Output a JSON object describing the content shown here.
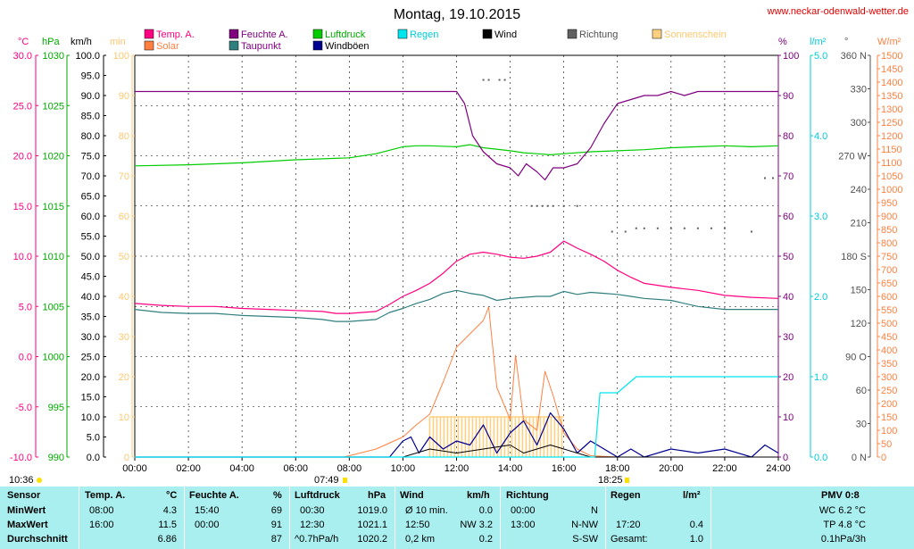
{
  "page": {
    "title": "Montag, 19.10.2015",
    "website": "www.neckar-odenwald-wetter.de"
  },
  "colors": {
    "temp": "#ff0080",
    "humidity": "#800080",
    "pressure": "#00cc00",
    "rain": "#00e5ee",
    "wind": "#000000",
    "direction": "#606060",
    "sunshine": "#ffd080",
    "solar": "#ff8040",
    "dewpoint": "#2f7f7f",
    "gust": "#000090",
    "grid": "#000000",
    "table_bg": "#a9efef"
  },
  "legend": {
    "temp": "Temp. A.",
    "humidity": "Feuchte A.",
    "pressure": "Luftdruck",
    "rain": "Regen",
    "wind": "Wind",
    "direction": "Richtung",
    "sunshine": "Sonnenschein",
    "solar": "Solar",
    "dewpoint": "Taupunkt",
    "gust": "Windböen"
  },
  "unit_labels": {
    "temp": "°C",
    "pressure": "hPa",
    "wind": "km/h",
    "sun": "min",
    "humidity": "%",
    "rain": "l/m²",
    "direction": "°",
    "solar": "W/m²"
  },
  "sun_times": {
    "left": "10:36",
    "sunrise": "07:49",
    "sunset": "18:25"
  },
  "chart_data": {
    "type": "line",
    "x_ticks": [
      "00:00",
      "02:00",
      "04:00",
      "06:00",
      "08:00",
      "10:00",
      "12:00",
      "14:00",
      "16:00",
      "18:00",
      "20:00",
      "22:00",
      "24:00"
    ],
    "axes": {
      "temp": {
        "min": -10,
        "max": 30,
        "ticks": [
          "30.0",
          "25.0",
          "20.0",
          "15.0",
          "10.0",
          "5.0",
          "0.0",
          "-5.0",
          "-10.0"
        ]
      },
      "pressure": {
        "min": 990,
        "max": 1030,
        "ticks": [
          "1030",
          "1025",
          "1020",
          "1015",
          "1010",
          "1005",
          "1000",
          "995",
          "990"
        ]
      },
      "wind": {
        "min": 0,
        "max": 100,
        "ticks": [
          "100.0",
          "95.0",
          "90.0",
          "85.0",
          "80.0",
          "75.0",
          "70.0",
          "65.0",
          "60.0",
          "55.0",
          "50.0",
          "45.0",
          "40.0",
          "35.0",
          "30.0",
          "25.0",
          "20.0",
          "15.0",
          "10.0",
          "5.0",
          "0.0"
        ]
      },
      "sun": {
        "min": 0,
        "max": 100,
        "ticks": [
          "100",
          "90",
          "80",
          "70",
          "60",
          "50",
          "40",
          "30",
          "20",
          "10",
          "0"
        ]
      },
      "humidity": {
        "min": 0,
        "max": 100,
        "ticks": [
          "100",
          "90",
          "80",
          "70",
          "60",
          "50",
          "40",
          "30",
          "20",
          "10",
          "0"
        ]
      },
      "rain": {
        "min": 0,
        "max": 5,
        "ticks": [
          "5.0",
          "4.0",
          "3.0",
          "2.0",
          "1.0",
          "0.0"
        ]
      },
      "direction": {
        "min": 0,
        "max": 360,
        "ticks": [
          "360 N",
          "330",
          "300",
          "270 W",
          "240",
          "210",
          "180 S",
          "150",
          "120",
          "90 O",
          "60",
          "30",
          "0 N"
        ]
      },
      "solar": {
        "min": 0,
        "max": 1500,
        "ticks": [
          "1500",
          "1450",
          "1400",
          "1350",
          "1300",
          "1250",
          "1200",
          "1150",
          "1100",
          "1050",
          "1000",
          "950",
          "900",
          "850",
          "800",
          "750",
          "700",
          "650",
          "600",
          "550",
          "500",
          "450",
          "400",
          "350",
          "300",
          "250",
          "200",
          "150",
          "100",
          "50",
          "0"
        ]
      }
    },
    "series": [
      {
        "name": "Temp. A.",
        "axis": "temp",
        "x": [
          0,
          1,
          2,
          3,
          4,
          5,
          6,
          7,
          7.5,
          8,
          8.5,
          9,
          9.5,
          10,
          10.5,
          11,
          11.5,
          12,
          12.5,
          13,
          13.5,
          14,
          14.5,
          15,
          15.5,
          16,
          16.5,
          17,
          17.5,
          18,
          18.5,
          19,
          20,
          21,
          22,
          23,
          24
        ],
        "values": [
          5.3,
          5.1,
          5.0,
          5.0,
          4.8,
          4.7,
          4.6,
          4.5,
          4.3,
          4.3,
          4.4,
          4.5,
          5.2,
          6.0,
          6.6,
          7.3,
          8.3,
          9.5,
          10.2,
          10.4,
          10.2,
          9.9,
          9.8,
          10.0,
          10.4,
          11.5,
          10.8,
          10.2,
          9.5,
          8.6,
          7.9,
          7.3,
          6.9,
          6.6,
          6.1,
          5.9,
          5.8
        ]
      },
      {
        "name": "Taupunkt",
        "axis": "temp",
        "x": [
          0,
          1,
          2,
          3,
          4,
          5,
          6,
          7,
          7.5,
          8,
          8.5,
          9,
          9.5,
          10,
          10.5,
          11,
          11.5,
          12,
          12.5,
          13,
          13.5,
          14,
          14.5,
          15,
          15.5,
          16,
          16.5,
          17,
          17.5,
          18,
          18.5,
          19,
          20,
          21,
          22,
          23,
          24
        ],
        "values": [
          4.7,
          4.4,
          4.3,
          4.3,
          4.1,
          4.0,
          3.9,
          3.7,
          3.5,
          3.5,
          3.6,
          3.7,
          4.4,
          4.8,
          5.3,
          5.7,
          6.3,
          6.6,
          6.3,
          6.1,
          5.6,
          5.8,
          5.9,
          6.0,
          6.0,
          6.5,
          6.2,
          6.4,
          6.3,
          6.2,
          6.0,
          5.8,
          5.6,
          5.0,
          4.7,
          4.7,
          4.7
        ]
      },
      {
        "name": "Luftdruck",
        "axis": "pressure",
        "x": [
          0,
          2,
          4,
          6,
          8,
          9,
          10,
          10.5,
          11,
          12,
          12.5,
          13,
          14,
          14.5,
          15,
          15.5,
          16,
          17,
          18,
          19,
          20,
          21,
          22,
          23,
          24
        ],
        "values": [
          1019.0,
          1019.1,
          1019.3,
          1019.6,
          1019.8,
          1020.2,
          1020.9,
          1021.0,
          1021.0,
          1020.9,
          1021.1,
          1020.8,
          1020.5,
          1020.3,
          1020.2,
          1020.1,
          1020.2,
          1020.4,
          1020.5,
          1020.6,
          1020.8,
          1020.9,
          1021.0,
          1020.9,
          1021.0
        ]
      },
      {
        "name": "Feuchte A.",
        "axis": "humidity",
        "x": [
          0,
          2,
          4,
          6,
          8,
          10,
          11,
          12,
          12.3,
          12.6,
          13,
          13.5,
          14,
          14.3,
          14.6,
          15,
          15.3,
          15.6,
          16,
          16.5,
          17,
          17.5,
          18,
          18.5,
          19,
          19.5,
          20,
          20.5,
          21,
          22,
          23,
          24
        ],
        "values": [
          91,
          91,
          91,
          91,
          91,
          91,
          91,
          91,
          88,
          80,
          76,
          73,
          72,
          70,
          73,
          71,
          69,
          72,
          72,
          73,
          77,
          83,
          88,
          89,
          90,
          90,
          91,
          90,
          91,
          91,
          91,
          91
        ]
      },
      {
        "name": "Solar",
        "axis": "solar",
        "x": [
          0,
          7.8,
          8,
          9,
          10,
          10.5,
          11,
          11.5,
          12,
          12.5,
          13,
          13.2,
          13.5,
          14,
          14.2,
          14.5,
          15,
          15.3,
          15.6,
          16,
          16.5,
          17,
          18,
          24
        ],
        "values": [
          0,
          0,
          5,
          30,
          75,
          120,
          160,
          280,
          410,
          460,
          510,
          560,
          260,
          140,
          380,
          140,
          100,
          320,
          230,
          90,
          30,
          5,
          0,
          0
        ]
      },
      {
        "name": "Windböen",
        "axis": "wind",
        "x": [
          0,
          5,
          8,
          9.5,
          10,
          10.3,
          10.6,
          11,
          11.5,
          12,
          12.5,
          13,
          13.5,
          14,
          14.5,
          15,
          15.5,
          16,
          16.5,
          17,
          18,
          18.5,
          19,
          20,
          21,
          22,
          23,
          23.5,
          24
        ],
        "values": [
          0,
          0,
          0,
          0,
          4,
          5,
          1,
          5,
          2,
          4,
          3,
          8,
          1,
          6,
          9,
          3,
          11,
          7,
          1,
          4,
          0,
          2,
          0,
          2,
          1,
          2,
          0,
          3,
          1
        ]
      },
      {
        "name": "Wind",
        "axis": "wind",
        "x": [
          0,
          10,
          10.5,
          11,
          12,
          13,
          14,
          14.5,
          15,
          15.5,
          16,
          16.5,
          17,
          24
        ],
        "values": [
          0,
          0,
          1,
          2,
          1,
          2,
          3,
          1,
          2,
          3,
          2,
          1,
          0,
          0
        ]
      },
      {
        "name": "Regen",
        "axis": "rain",
        "x": [
          0,
          17.15,
          17.35,
          18,
          18.7,
          24
        ],
        "values": [
          0,
          0,
          0.8,
          0.8,
          1.0,
          1.0
        ]
      },
      {
        "name": "Sonnenschein",
        "axis": "sun",
        "x": [
          11,
          11.5,
          12,
          12.5,
          13,
          13.5,
          14,
          14.5,
          15,
          15.5,
          16
        ],
        "values": [
          10,
          10,
          10,
          10,
          10,
          10,
          10,
          10,
          10,
          10,
          10
        ]
      },
      {
        "name": "Richtung",
        "axis": "direction",
        "x": [
          13,
          13.2,
          13.6,
          13.8,
          14.8,
          15,
          15.2,
          15.4,
          15.6,
          16,
          16.5,
          17.8,
          18.3,
          18.7,
          19,
          19.5,
          20,
          20.5,
          21,
          21.5,
          22,
          23,
          23.5,
          23.8
        ],
        "values": [
          338,
          338,
          338,
          338,
          225,
          225,
          225,
          225,
          225,
          225,
          225,
          202,
          202,
          205,
          205,
          205,
          205,
          205,
          205,
          205,
          205,
          202,
          250,
          250
        ]
      }
    ]
  },
  "table": {
    "headers": {
      "sensor": "Sensor",
      "temp": "Temp. A.",
      "temp_unit": "°C",
      "hum": "Feuchte A.",
      "hum_unit": "%",
      "press": "Luftdruck",
      "press_unit": "hPa",
      "wind": "Wind",
      "wind_unit": "km/h",
      "dir": "Richtung",
      "rain": "Regen",
      "rain_unit": "l/m²",
      "pmv": "PMV 0:8"
    },
    "rows": [
      {
        "label": "MinWert",
        "temp_time": "08:00",
        "temp_val": "4.3",
        "hum_time": "15:40",
        "hum_val": "69",
        "press_time": "00:30",
        "press_val": "1019.0",
        "wind_a": "Ø 10 min.",
        "wind_b": "0.0",
        "dir_a": "00:00",
        "dir_b": "N",
        "rain_a": "",
        "rain_b": "",
        "pmv": "WC 6.2 °C"
      },
      {
        "label": "MaxWert",
        "temp_time": "16:00",
        "temp_val": "11.5",
        "hum_time": "00:00",
        "hum_val": "91",
        "press_time": "12:30",
        "press_val": "1021.1",
        "wind_a": "12:50",
        "wind_b": "NW 3.2",
        "dir_a": "13:00",
        "dir_b": "N-NW",
        "rain_a": "17:20",
        "rain_b": "0.4",
        "pmv": "TP 4.8 °C"
      },
      {
        "label": "Durchschnitt",
        "temp_time": "",
        "temp_val": "6.86",
        "hum_time": "",
        "hum_val": "87",
        "press_time": "^0.7hPa/h",
        "press_val": "1020.2",
        "wind_a": "0,2 km",
        "wind_b": "0.2",
        "dir_a": "",
        "dir_b": "S-SW",
        "rain_a": "Gesamt:",
        "rain_b": "1.0",
        "pmv": "0.1hPa/3h"
      }
    ]
  }
}
